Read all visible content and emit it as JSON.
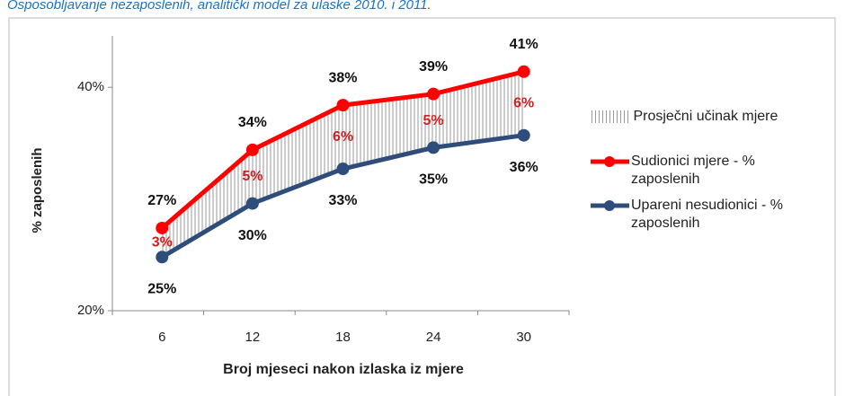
{
  "chart_data": {
    "type": "line",
    "title": "Osposobljavanje nezaposlenih, analitički model za ulaske 2010. i 2011.",
    "x_label": "Broj mjeseci nakon izlaska iz mjere",
    "y_label": "% zaposlenih",
    "categories": [
      "6",
      "12",
      "18",
      "24",
      "30"
    ],
    "series": [
      {
        "name": "Sudionici mjere - % zaposlenih",
        "color": "#ff0000",
        "values": [
          27.4,
          34.4,
          38.4,
          39.4,
          41.4
        ],
        "value_labels": [
          "27%",
          "34%",
          "38%",
          "39%",
          "41%"
        ]
      },
      {
        "name": "Upareni nesudionici - % zaposlenih",
        "color": "#2e4d7b",
        "values": [
          24.8,
          29.6,
          32.7,
          34.6,
          35.7
        ],
        "value_labels": [
          "25%",
          "30%",
          "33%",
          "35%",
          "36%"
        ]
      }
    ],
    "difference": {
      "name": "Prosječni učinak mjere",
      "color": "#d02020",
      "values": [
        2.6,
        4.8,
        5.7,
        4.8,
        5.7
      ],
      "value_labels": [
        "3%",
        "5%",
        "6%",
        "5%",
        "6%"
      ]
    },
    "ylim": [
      20,
      44.6
    ],
    "yticks": [
      {
        "value": 20,
        "label": "20%"
      },
      {
        "value": 40,
        "label": "40%"
      }
    ]
  }
}
